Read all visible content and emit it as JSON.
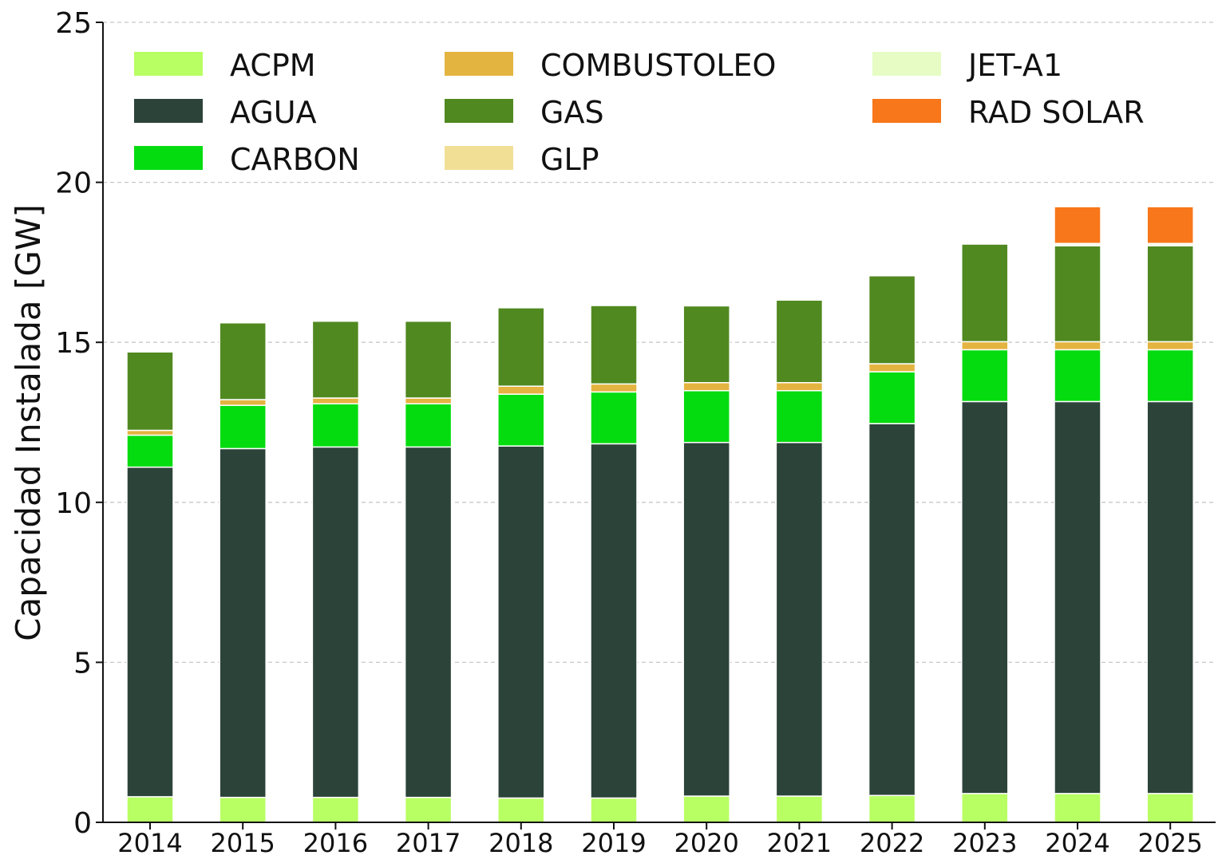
{
  "chart_data": {
    "type": "bar",
    "stacked": true,
    "categories": [
      "2014",
      "2015",
      "2016",
      "2017",
      "2018",
      "2019",
      "2020",
      "2021",
      "2022",
      "2023",
      "2024",
      "2025"
    ],
    "ylabel": "Capacidad Instalada [GW]",
    "xlabel": "",
    "ylim": [
      0,
      25
    ],
    "yticks": [
      0,
      5,
      10,
      15,
      20,
      25
    ],
    "grid": "horizontal dashed",
    "legend_position": "top, 3 columns",
    "series": [
      {
        "name": "ACPM",
        "color": "#b8ff63",
        "values": [
          0.8,
          0.78,
          0.78,
          0.78,
          0.76,
          0.76,
          0.82,
          0.82,
          0.84,
          0.9,
          0.9,
          0.9
        ]
      },
      {
        "name": "AGUA",
        "color": "#2c4339",
        "values": [
          10.3,
          10.9,
          10.95,
          10.95,
          11.0,
          11.07,
          11.05,
          11.05,
          11.62,
          12.25,
          12.25,
          12.25
        ]
      },
      {
        "name": "CARBON",
        "color": "#05dc0f",
        "values": [
          1.0,
          1.35,
          1.35,
          1.35,
          1.62,
          1.62,
          1.62,
          1.62,
          1.62,
          1.62,
          1.62,
          1.62
        ]
      },
      {
        "name": "COMBUSTOLEO",
        "color": "#e4b440",
        "values": [
          0.15,
          0.18,
          0.18,
          0.18,
          0.25,
          0.25,
          0.25,
          0.25,
          0.25,
          0.25,
          0.25,
          0.25
        ]
      },
      {
        "name": "GAS",
        "color": "#508920",
        "values": [
          2.45,
          2.4,
          2.4,
          2.4,
          2.45,
          2.45,
          2.4,
          2.58,
          2.75,
          3.05,
          3.0,
          3.0
        ]
      },
      {
        "name": "GLP",
        "color": "#f2df96",
        "values": [
          0,
          0,
          0,
          0,
          0,
          0,
          0,
          0,
          0,
          0,
          0.02,
          0.02
        ]
      },
      {
        "name": "JET-A1",
        "color": "#e6fcc4",
        "values": [
          0,
          0,
          0,
          0,
          0,
          0,
          0,
          0,
          0,
          0,
          0.05,
          0.05
        ]
      },
      {
        "name": "RAD SOLAR",
        "color": "#f7771a",
        "values": [
          0,
          0,
          0,
          0,
          0,
          0,
          0,
          0,
          0,
          0,
          1.15,
          1.15
        ]
      }
    ]
  }
}
